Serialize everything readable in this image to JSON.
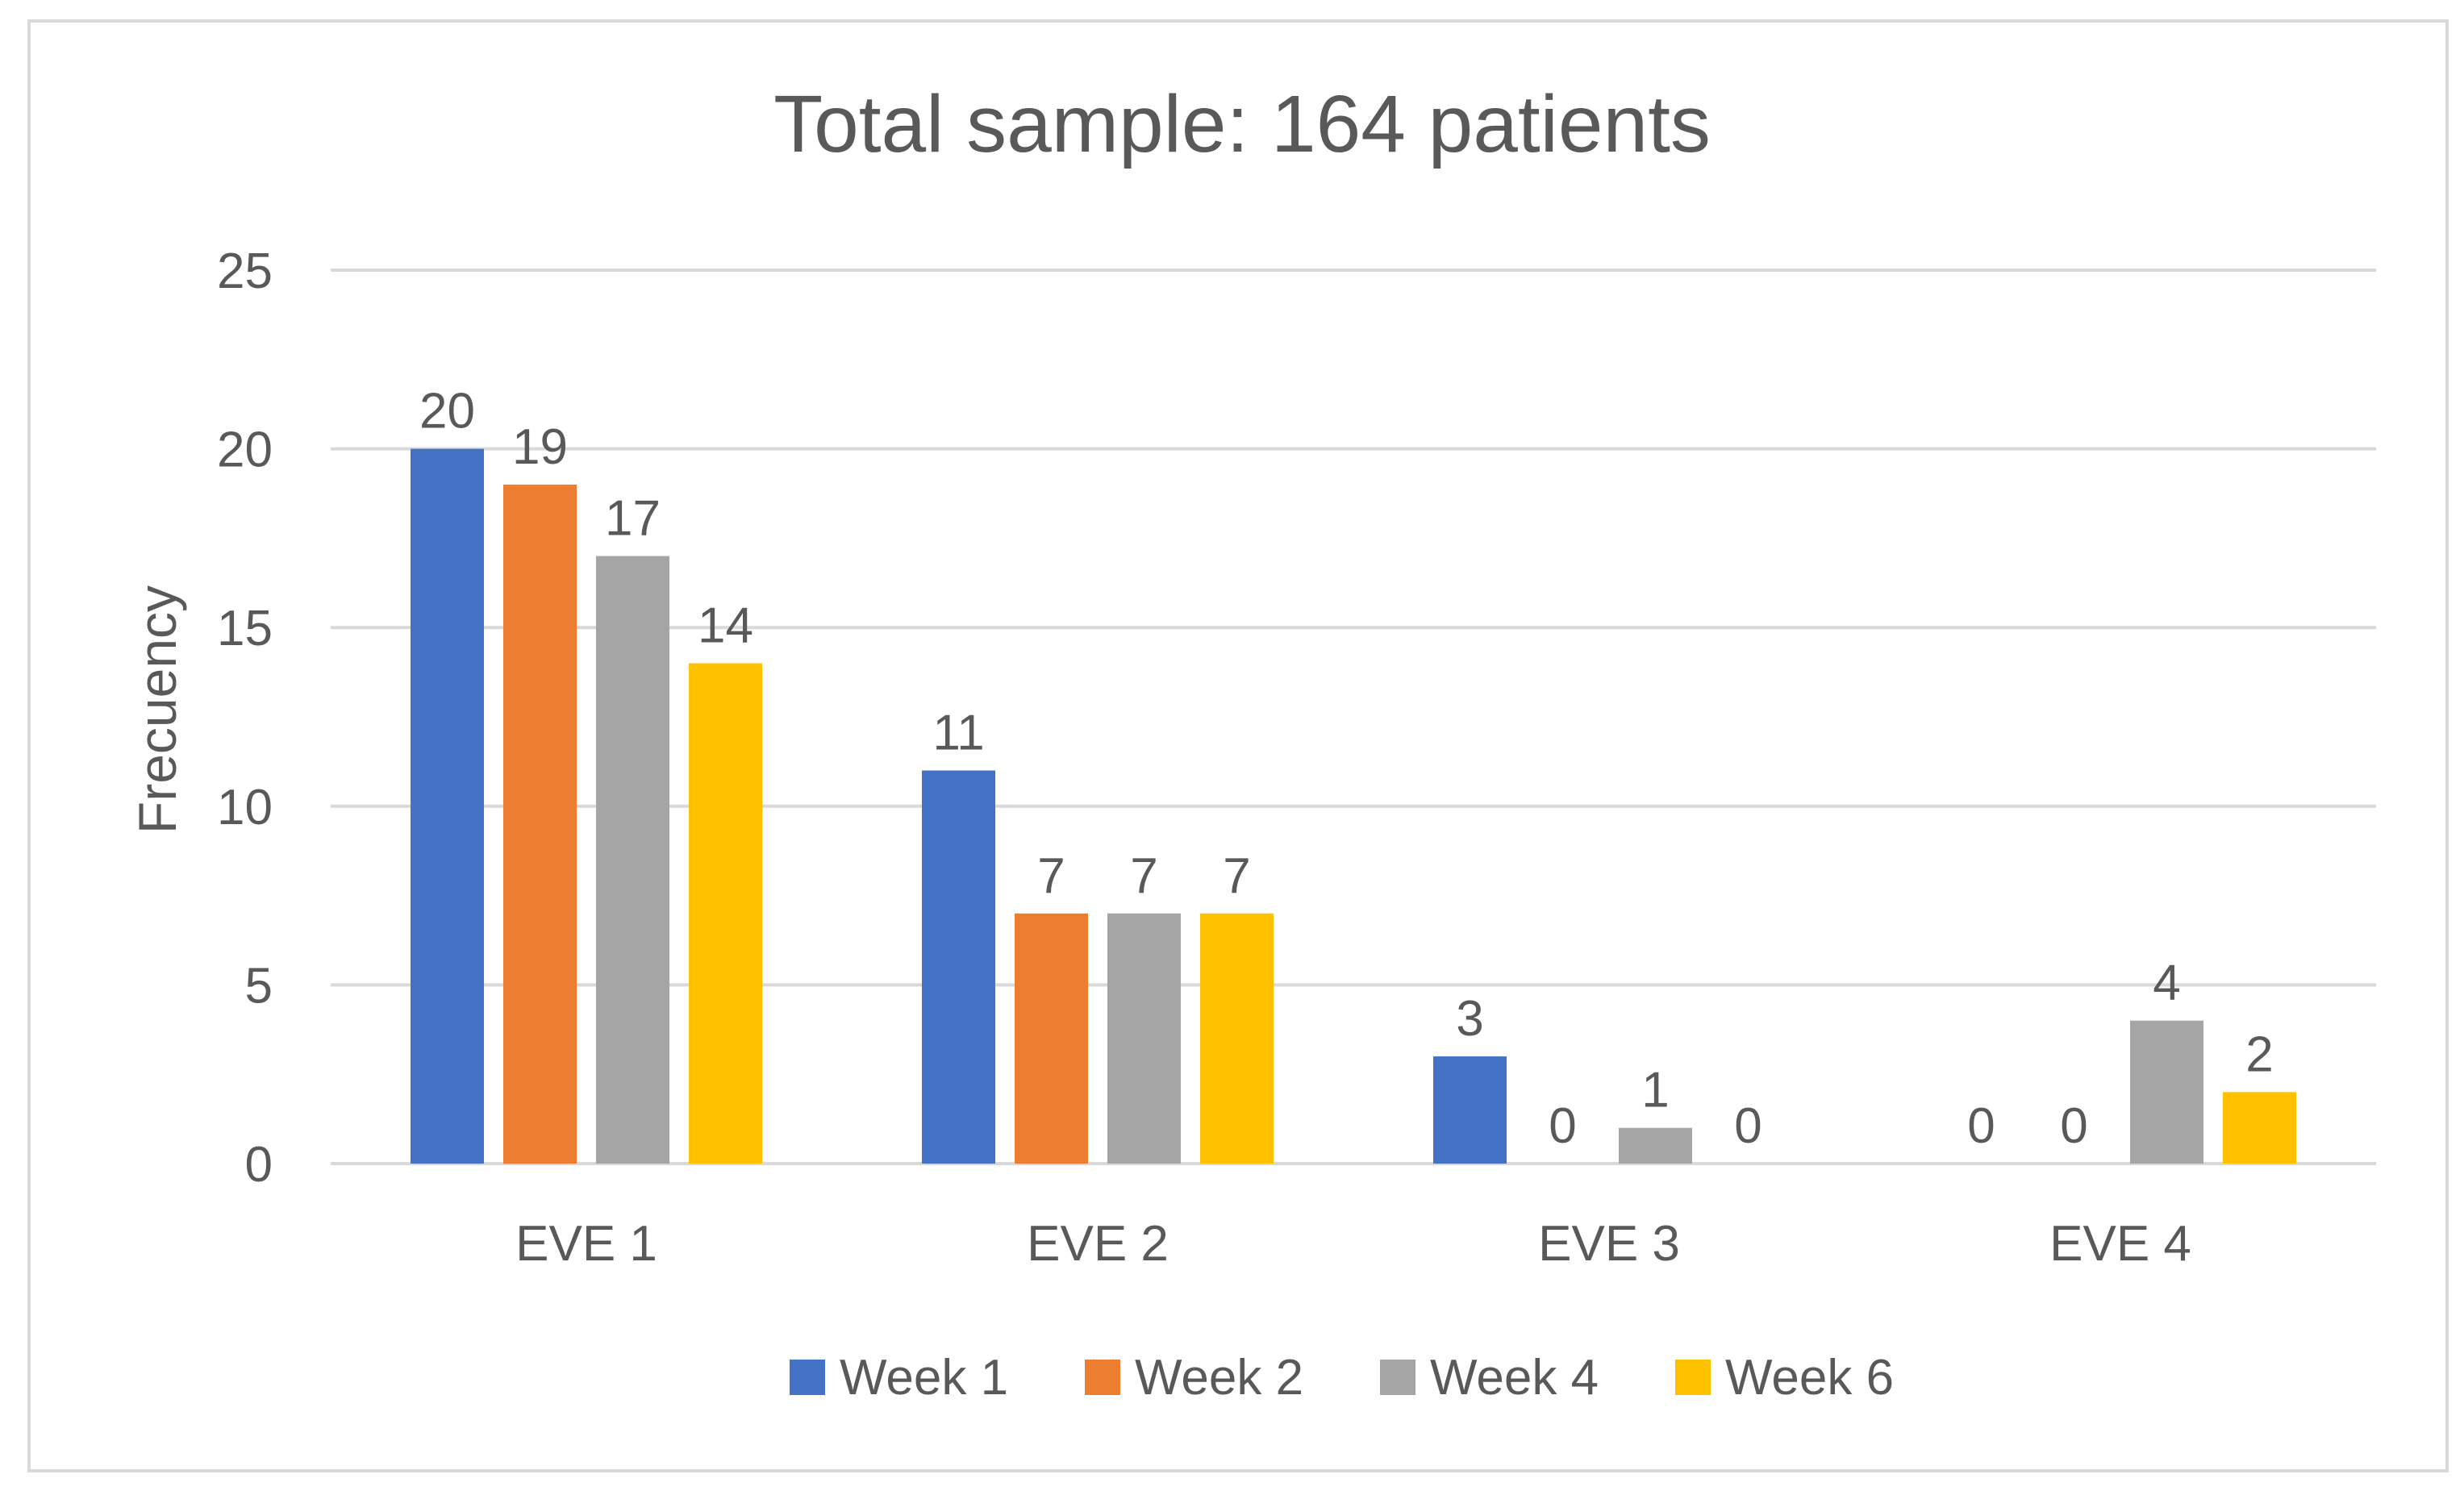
{
  "chart_data": {
    "type": "bar",
    "title": "Total sample: 164 patients",
    "xlabel": "",
    "ylabel": "Frecuency",
    "categories": [
      "EVE 1",
      "EVE 2",
      "EVE 3",
      "EVE 4"
    ],
    "series": [
      {
        "name": "Week 1",
        "color": "#4472C4",
        "values": [
          20,
          11,
          3,
          0
        ]
      },
      {
        "name": "Week 2",
        "color": "#ED7D31",
        "values": [
          19,
          7,
          0,
          0
        ]
      },
      {
        "name": "Week 4",
        "color": "#A5A5A5",
        "values": [
          17,
          7,
          1,
          4
        ]
      },
      {
        "name": "Week 6",
        "color": "#FFC000",
        "values": [
          14,
          7,
          0,
          2
        ]
      }
    ],
    "ylim": [
      0,
      25
    ],
    "yticks": [
      0,
      5,
      10,
      15,
      20,
      25
    ],
    "grid": true,
    "data_labels": true,
    "legend_position": "bottom"
  }
}
